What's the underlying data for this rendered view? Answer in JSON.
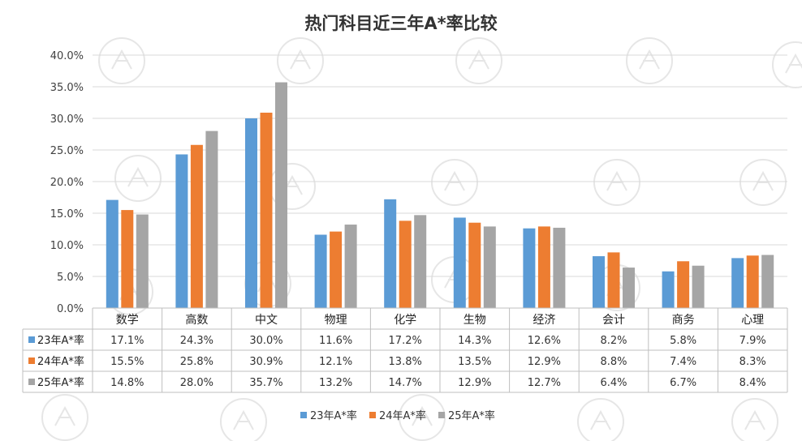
{
  "chart_data": {
    "type": "bar",
    "title": "热门科目近三年A*率比较",
    "categories": [
      "数学",
      "高数",
      "中文",
      "物理",
      "化学",
      "生物",
      "经济",
      "会计",
      "商务",
      "心理"
    ],
    "ylim": [
      0,
      40
    ],
    "yticks": [
      "0.0%",
      "5.0%",
      "10.0%",
      "15.0%",
      "20.0%",
      "25.0%",
      "30.0%",
      "35.0%",
      "40.0%"
    ],
    "grid": true,
    "legend": "bottom",
    "data_table": true,
    "series": [
      {
        "name": "23年A*率",
        "color": "#5b9bd5",
        "values": [
          17.1,
          24.3,
          30.0,
          11.6,
          17.2,
          14.3,
          12.6,
          8.2,
          5.8,
          7.9
        ],
        "labels": [
          "17.1%",
          "24.3%",
          "30.0%",
          "11.6%",
          "17.2%",
          "14.3%",
          "12.6%",
          "8.2%",
          "5.8%",
          "7.9%"
        ]
      },
      {
        "name": "24年A*率",
        "color": "#ed7d31",
        "values": [
          15.5,
          25.8,
          30.9,
          12.1,
          13.8,
          13.5,
          12.9,
          8.8,
          7.4,
          8.3
        ],
        "labels": [
          "15.5%",
          "25.8%",
          "30.9%",
          "12.1%",
          "13.8%",
          "13.5%",
          "12.9%",
          "8.8%",
          "7.4%",
          "8.3%"
        ]
      },
      {
        "name": "25年A*率",
        "color": "#a5a5a5",
        "values": [
          14.8,
          28.0,
          35.7,
          13.2,
          14.7,
          12.9,
          12.7,
          6.4,
          6.7,
          8.4
        ],
        "labels": [
          "14.8%",
          "28.0%",
          "35.7%",
          "13.2%",
          "14.7%",
          "12.9%",
          "12.7%",
          "6.4%",
          "6.7%",
          "8.4%"
        ]
      }
    ]
  }
}
